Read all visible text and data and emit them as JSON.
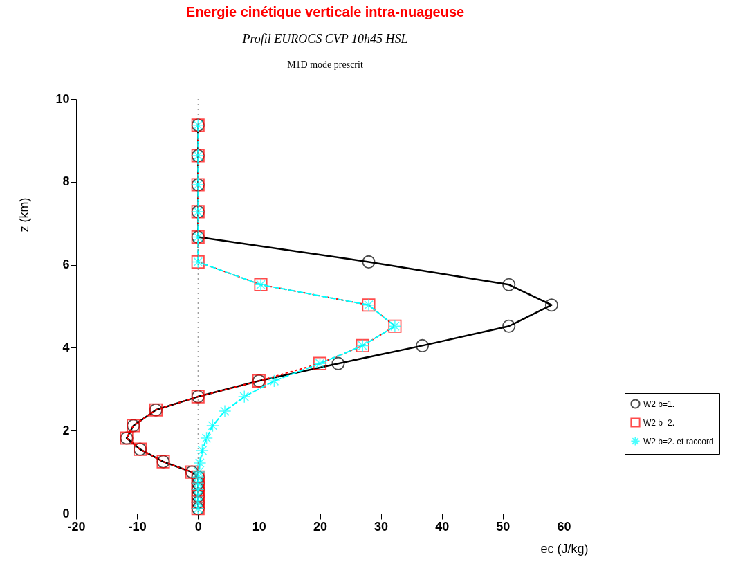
{
  "chart_data": {
    "type": "line",
    "title": "Energie cinétique verticale intra-nuageuse",
    "subtitle": "Profil EUROCS CVP 10h45 HSL",
    "annotations": [
      "M1D mode prescrit"
    ],
    "xlabel": "ec (J/kg)",
    "ylabel": "z (km)",
    "xlim": [
      -20,
      60
    ],
    "xticks": [
      -20,
      -10,
      0,
      10,
      20,
      30,
      40,
      50,
      60
    ],
    "ylim": [
      0,
      10
    ],
    "yticks": [
      0,
      2,
      4,
      6,
      8,
      10
    ],
    "grid": false,
    "legend": "right",
    "ref_lines": [
      {
        "axis": "x",
        "value": 0,
        "label": null,
        "color": "#808080",
        "line_style": "dotted"
      }
    ],
    "series": [
      {
        "name": "W2 b=1.",
        "color": "#000000",
        "marker": "circle",
        "line_style": "solid",
        "x": [
          0,
          0,
          0,
          0,
          0,
          28,
          51,
          58,
          51,
          36.8,
          23,
          10,
          0,
          -6.9,
          -10.6,
          -11.7,
          -9.5,
          -5.7,
          -1,
          0,
          0,
          0,
          0,
          0,
          0
        ],
        "values": [
          9.37,
          8.63,
          7.93,
          7.28,
          6.67,
          6.07,
          5.52,
          5.03,
          4.52,
          4.05,
          3.62,
          3.2,
          2.82,
          2.5,
          2.12,
          1.82,
          1.55,
          1.25,
          1.0,
          0.88,
          0.73,
          0.58,
          0.42,
          0.27,
          0.12
        ]
      },
      {
        "name": "W2 b=2.",
        "color": "#ff0000",
        "marker": "square",
        "line_style": "dotted",
        "x": [
          0,
          0,
          0,
          0,
          0,
          0,
          10.3,
          28,
          32.3,
          27,
          20,
          10,
          0,
          -6.9,
          -10.6,
          -11.7,
          -9.5,
          -5.7,
          -1,
          0,
          0,
          0,
          0,
          0,
          0
        ],
        "values": [
          9.37,
          8.63,
          7.93,
          7.28,
          6.67,
          6.07,
          5.52,
          5.03,
          4.52,
          4.05,
          3.62,
          3.2,
          2.82,
          2.5,
          2.12,
          1.82,
          1.55,
          1.25,
          1.0,
          0.88,
          0.73,
          0.58,
          0.42,
          0.27,
          0.12
        ]
      },
      {
        "name": "W2 b=2. et raccord",
        "color": "#00ffff",
        "marker": "cross",
        "line_style": "dashed",
        "x": [
          0,
          0,
          0,
          0,
          0,
          0,
          10.3,
          28,
          32.3,
          27,
          20,
          12.5,
          7.6,
          4.4,
          2.4,
          1.4,
          0.7,
          0.3,
          0.1,
          0,
          0,
          0,
          0,
          0,
          0
        ],
        "values": [
          9.37,
          8.63,
          7.93,
          7.28,
          6.67,
          6.07,
          5.52,
          5.03,
          4.52,
          4.05,
          3.62,
          3.2,
          2.82,
          2.47,
          2.12,
          1.82,
          1.52,
          1.22,
          1.0,
          0.88,
          0.73,
          0.58,
          0.42,
          0.27,
          0.12
        ]
      }
    ]
  }
}
